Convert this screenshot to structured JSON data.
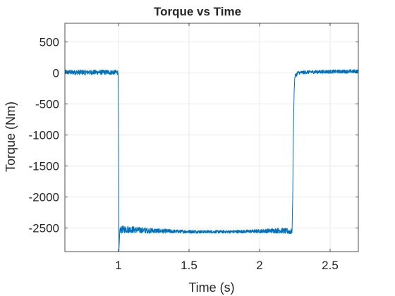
{
  "chart_data": {
    "type": "line",
    "title": "Torque vs Time",
    "xlabel": "Time (s)",
    "ylabel": "Torque (Nm)",
    "xlim": [
      0.62,
      2.7
    ],
    "ylim": [
      -2880,
      800
    ],
    "xticks": [
      1,
      1.5,
      2,
      2.5
    ],
    "xtick_labels": [
      "1",
      "1.5",
      "2",
      "2.5"
    ],
    "yticks": [
      500,
      0,
      -500,
      -1000,
      -1500,
      -2000,
      -2500
    ],
    "ytick_labels": [
      "500",
      "0",
      "-500",
      "-1000",
      "-1500",
      "-2000",
      "-2500"
    ],
    "grid": true,
    "line_color": "#0072BD",
    "series": [
      {
        "x": [
          0.62,
          0.998,
          1.0,
          1.003,
          1.01,
          1.05,
          1.2,
          1.4,
          1.6,
          1.8,
          2.0,
          2.15,
          2.23,
          2.235,
          2.24,
          2.245,
          2.25,
          2.27,
          2.35,
          2.5,
          2.7
        ],
        "y": [
          10,
          10,
          -800,
          -2880,
          -2530,
          -2520,
          -2540,
          -2555,
          -2560,
          -2560,
          -2550,
          -2540,
          -2560,
          -2000,
          -900,
          -300,
          -60,
          0,
          15,
          20,
          25
        ],
        "noise": [
          40,
          40,
          0,
          0,
          60,
          60,
          45,
          30,
          25,
          25,
          30,
          45,
          45,
          0,
          0,
          0,
          30,
          30,
          30,
          30,
          30
        ]
      }
    ]
  }
}
